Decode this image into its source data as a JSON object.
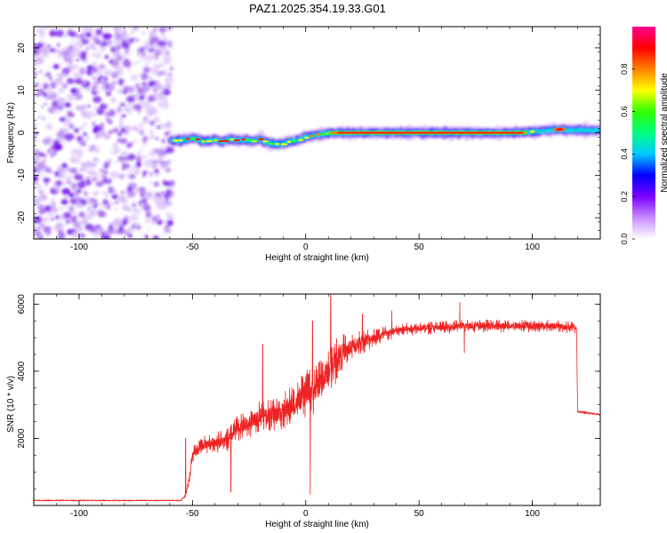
{
  "title": "PAZ1.2025.354.19.33.G01",
  "chart_data": [
    {
      "type": "heatmap",
      "name": "spectrogram",
      "xlabel": "Height of straight line (km)",
      "ylabel": "Frequency (Hz)",
      "xlim": [
        -120,
        130
      ],
      "ylim": [
        -25,
        25
      ],
      "xticks": [
        -100,
        -50,
        0,
        50,
        100
      ],
      "yticks": [
        -20,
        -10,
        0,
        10,
        20
      ],
      "xtick_labels": [
        "-100",
        "-50",
        "0",
        "50",
        "100"
      ],
      "ytick_labels": [
        "-20",
        "-10",
        "0",
        "10",
        "20"
      ],
      "noise_region_x": [
        -120,
        -59
      ],
      "signal_track": {
        "x": [
          -59,
          -55,
          -50,
          -45,
          -40,
          -37,
          -33,
          -30,
          -27,
          -24,
          -20,
          -17,
          -13,
          -10,
          -7,
          -4,
          0,
          3,
          6,
          9,
          12,
          16,
          20,
          25,
          35,
          50,
          70,
          90,
          98,
          102,
          106,
          110,
          114,
          118,
          124,
          130
        ],
        "y": [
          -1.8,
          -1.8,
          -1.2,
          -2.0,
          -1.6,
          -2.2,
          -1.5,
          -1.8,
          -1.6,
          -2.0,
          -1.4,
          -2.4,
          -2.6,
          -2.6,
          -2.0,
          -1.8,
          -1.0,
          -0.6,
          -0.4,
          -0.2,
          0.0,
          0.0,
          0.0,
          0.0,
          0.0,
          0.0,
          0.0,
          0.0,
          0.2,
          0.3,
          0.5,
          0.8,
          0.7,
          0.6,
          0.6,
          0.6
        ]
      },
      "colorbar": {
        "label": "Normalized spectral amplitude",
        "range": [
          0,
          1
        ],
        "ticks": [
          0.0,
          0.2,
          0.4,
          0.6,
          0.8
        ],
        "tick_labels": [
          "0.0",
          "0.2",
          "0.4",
          "0.6",
          "0.8"
        ],
        "colors": [
          "#ffffff",
          "#c88cff",
          "#7a00ff",
          "#0000ff",
          "#00c8ff",
          "#00ff80",
          "#30ff00",
          "#ffff00",
          "#ff8000",
          "#ff0000",
          "#ff0090"
        ]
      }
    },
    {
      "type": "line",
      "name": "snr",
      "xlabel": "Height of straight line (km)",
      "ylabel": "SNR (10 * v/v)",
      "xlim": [
        -120,
        130
      ],
      "ylim": [
        0,
        6300
      ],
      "xticks": [
        -100,
        -50,
        0,
        50,
        100
      ],
      "yticks": [
        2000,
        4000,
        6000
      ],
      "xtick_labels": [
        "-100",
        "-50",
        "0",
        "50",
        "100"
      ],
      "ytick_labels": [
        "2000",
        "4000",
        "6000"
      ],
      "color": "#ee2222",
      "envelope": {
        "x": [
          -120,
          -55,
          -53,
          -51,
          -50,
          -45,
          -40,
          -35,
          -30,
          -25,
          -20,
          -15,
          -10,
          -5,
          0,
          5,
          10,
          15,
          20,
          25,
          30,
          40,
          50,
          60,
          70,
          80,
          90,
          100,
          110,
          119.5,
          120,
          125,
          130
        ],
        "y": [
          150,
          150,
          300,
          900,
          1500,
          1800,
          1900,
          1900,
          2300,
          2400,
          2700,
          2700,
          2800,
          3000,
          3300,
          3500,
          4000,
          4500,
          4700,
          4900,
          5000,
          5200,
          5300,
          5300,
          5350,
          5350,
          5350,
          5350,
          5350,
          5300,
          2800,
          2750,
          2700
        ]
      },
      "noise_amp": {
        "x": [
          -120,
          -55,
          -50,
          -20,
          0,
          10,
          20,
          30,
          40,
          119,
          120,
          130
        ],
        "y": [
          20,
          20,
          250,
          450,
          700,
          800,
          450,
          320,
          200,
          180,
          40,
          40
        ]
      },
      "spikes": [
        {
          "x": -53,
          "y": 2000
        },
        {
          "x": -33,
          "y": 400
        },
        {
          "x": -19,
          "y": 4800
        },
        {
          "x": 2,
          "y": 330
        },
        {
          "x": 3,
          "y": 5500
        },
        {
          "x": 11,
          "y": 6300
        },
        {
          "x": 25,
          "y": 5700
        },
        {
          "x": 38,
          "y": 5800
        },
        {
          "x": 68,
          "y": 6050
        },
        {
          "x": 70,
          "y": 4550
        }
      ]
    }
  ]
}
